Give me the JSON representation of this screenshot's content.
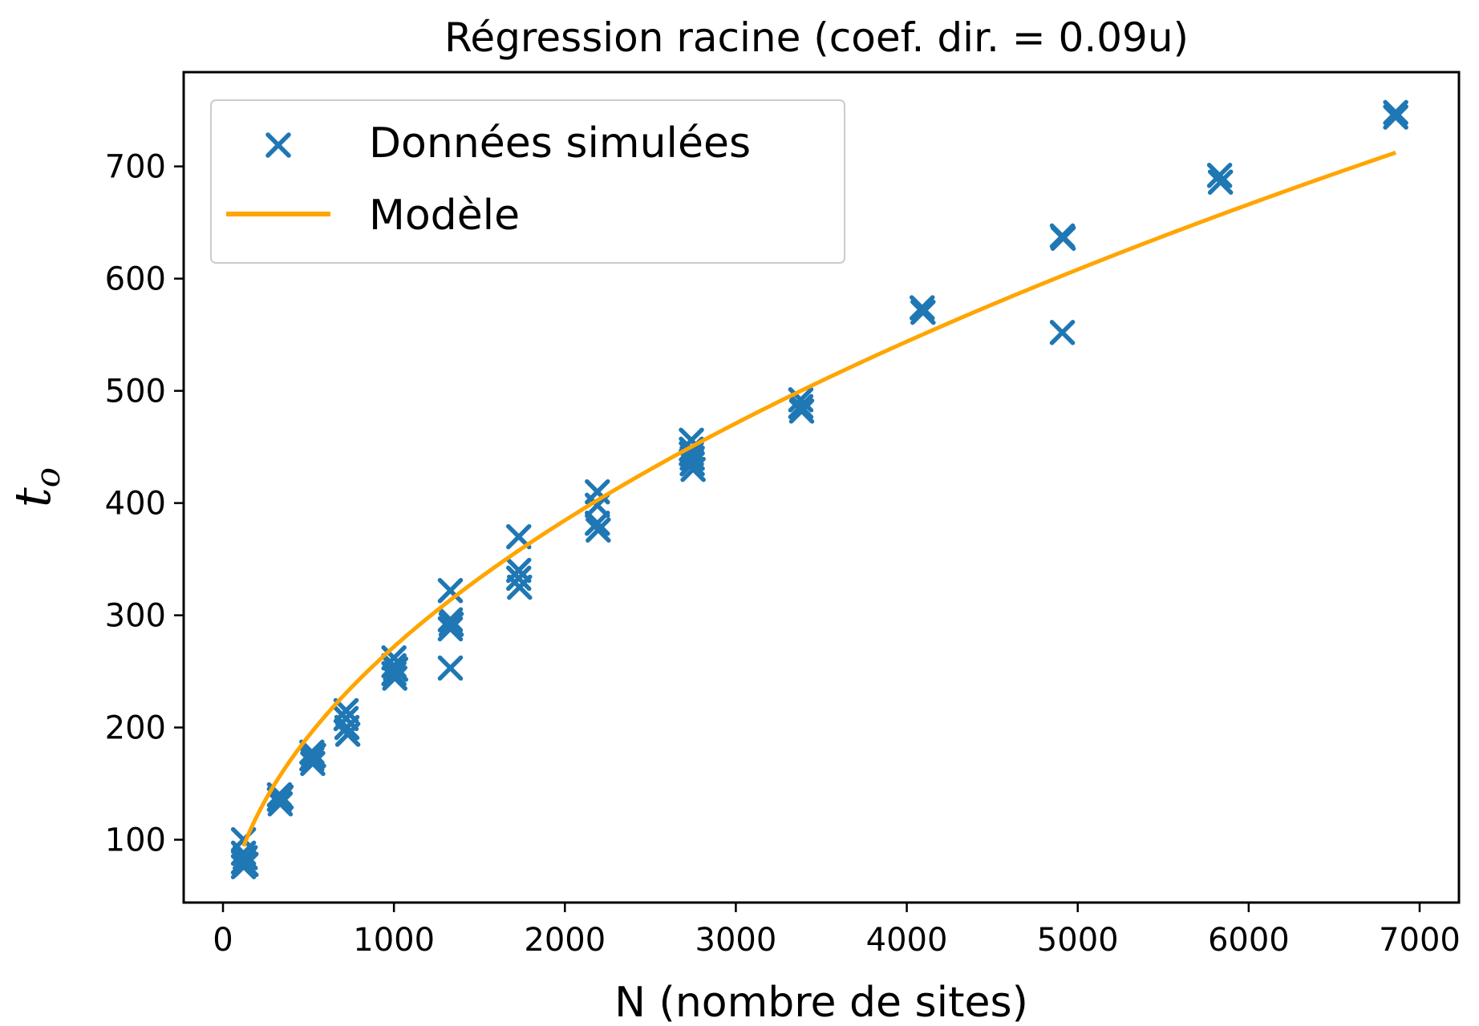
{
  "chart_data": {
    "type": "scatter",
    "title": "Régression racine (coef. dir. = 0.09u)",
    "xlabel": "N (nombre de sites)",
    "ylabel": {
      "main": "t",
      "subscript": "o"
    },
    "xlim": [
      -230,
      7230
    ],
    "ylim": [
      44,
      784
    ],
    "xticks": [
      0,
      1000,
      2000,
      3000,
      4000,
      5000,
      6000,
      7000
    ],
    "yticks": [
      100,
      200,
      300,
      400,
      500,
      600,
      700
    ],
    "grid": false,
    "legend": {
      "position": "top-left",
      "entries": [
        "Données simulées",
        "Modèle"
      ]
    },
    "colors": {
      "scatter": "#1f77b4",
      "model": "#ffa500"
    },
    "series": [
      {
        "name": "Données simulées",
        "kind": "scatter",
        "marker": "x",
        "points": [
          [
            120,
            100
          ],
          [
            120,
            88
          ],
          [
            120,
            80
          ],
          [
            120,
            76
          ],
          [
            130,
            84
          ],
          [
            135,
            78
          ],
          [
            330,
            140
          ],
          [
            330,
            136
          ],
          [
            335,
            132
          ],
          [
            340,
            138
          ],
          [
            520,
            178
          ],
          [
            520,
            172
          ],
          [
            525,
            168
          ],
          [
            530,
            175
          ],
          [
            720,
            215
          ],
          [
            720,
            208
          ],
          [
            725,
            200
          ],
          [
            730,
            194
          ],
          [
            1000,
            262
          ],
          [
            1000,
            255
          ],
          [
            1000,
            248
          ],
          [
            1005,
            244
          ],
          [
            1010,
            252
          ],
          [
            1330,
            322
          ],
          [
            1330,
            296
          ],
          [
            1330,
            288
          ],
          [
            1335,
            292
          ],
          [
            1330,
            253
          ],
          [
            1730,
            370
          ],
          [
            1730,
            340
          ],
          [
            1730,
            333
          ],
          [
            1735,
            325
          ],
          [
            2190,
            410
          ],
          [
            2190,
            398
          ],
          [
            2190,
            382
          ],
          [
            2195,
            376
          ],
          [
            2740,
            456
          ],
          [
            2740,
            448
          ],
          [
            2745,
            440
          ],
          [
            2745,
            435
          ],
          [
            2750,
            430
          ],
          [
            2740,
            444
          ],
          [
            3380,
            492
          ],
          [
            3380,
            486
          ],
          [
            3385,
            482
          ],
          [
            4090,
            574
          ],
          [
            4095,
            570
          ],
          [
            4910,
            638
          ],
          [
            4915,
            636
          ],
          [
            4910,
            552
          ],
          [
            5830,
            692
          ],
          [
            5835,
            686
          ],
          [
            6860,
            748
          ],
          [
            6860,
            744
          ]
        ]
      },
      {
        "name": "Modèle",
        "kind": "line",
        "function": "y = a * sqrt(x)",
        "coefficient": 8.6,
        "x_range": [
          120,
          6860
        ]
      }
    ]
  }
}
